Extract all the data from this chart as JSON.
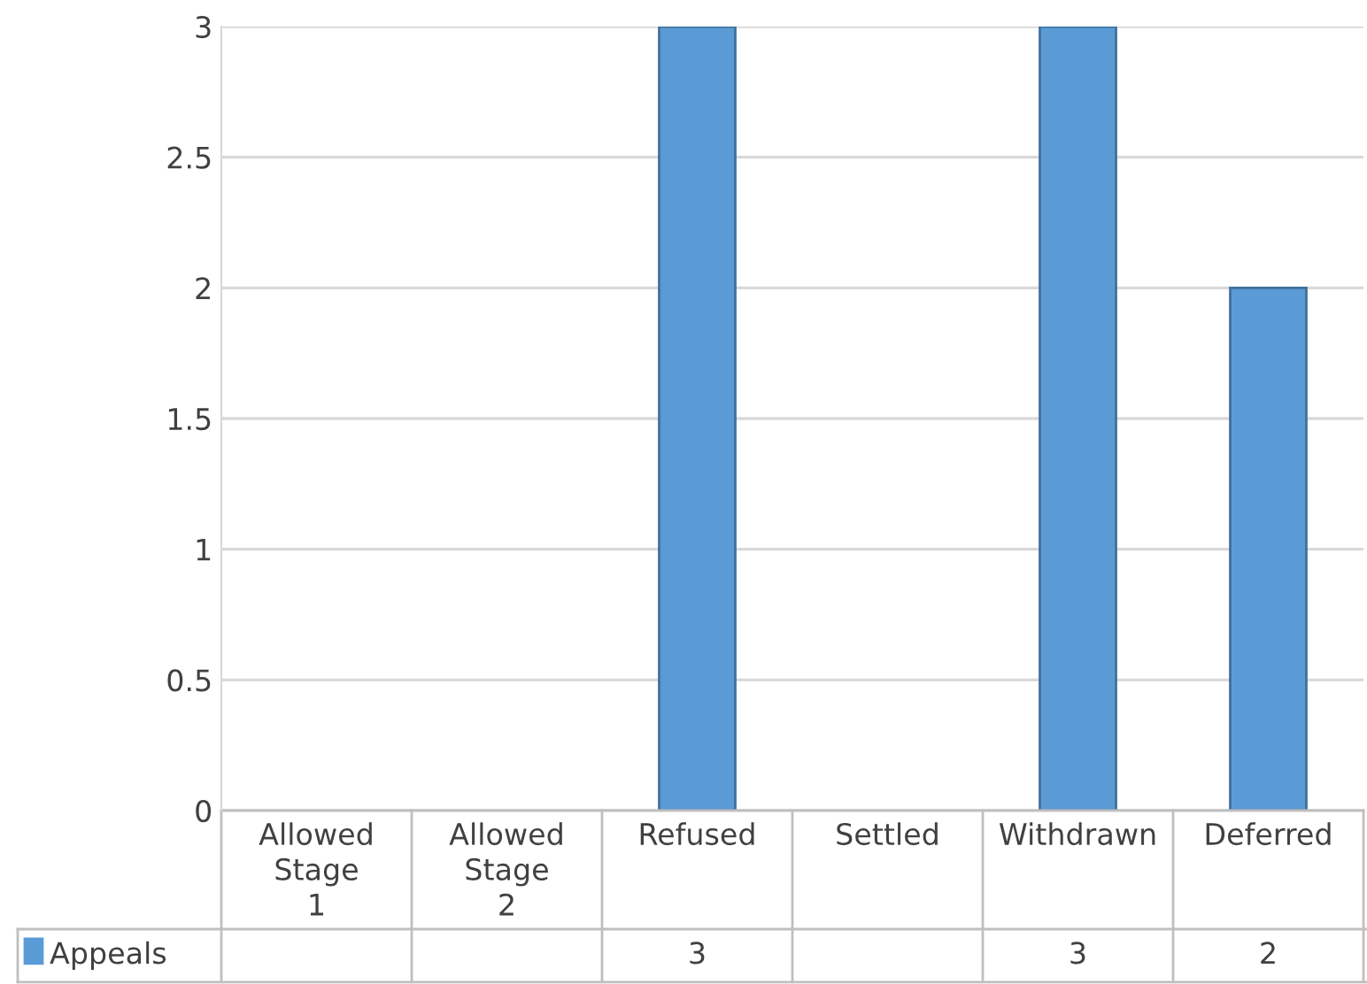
{
  "chart_data": {
    "type": "bar",
    "categories": [
      "Allowed Stage 1",
      "Allowed Stage 2",
      "Refused",
      "Settled",
      "Withdrawn",
      "Deferred"
    ],
    "series": [
      {
        "name": "Appeals",
        "color": "#5b9bd5",
        "values": [
          null,
          null,
          3,
          null,
          3,
          2
        ]
      }
    ],
    "ylim": [
      0,
      3
    ],
    "yticks": [
      0,
      0.5,
      1,
      1.5,
      2,
      2.5,
      3
    ],
    "grid": "y",
    "data_labels": true,
    "legend": "bottom"
  }
}
